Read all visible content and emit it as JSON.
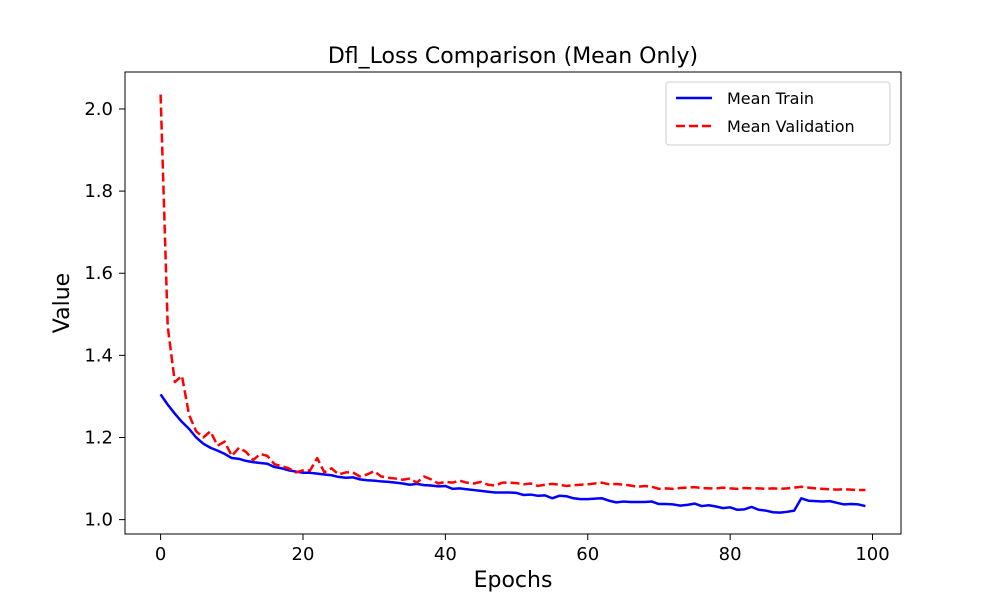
{
  "chart_data": {
    "type": "line",
    "title": "Dfl_Loss Comparison (Mean Only)",
    "xlabel": "Epochs",
    "ylabel": "Value",
    "xlim": [
      -5,
      104
    ],
    "ylim": [
      0.965,
      2.09
    ],
    "xticks": [
      0,
      20,
      40,
      60,
      80,
      100
    ],
    "yticks": [
      1.0,
      1.2,
      1.4,
      1.6,
      1.8,
      2.0
    ],
    "xtick_labels": [
      "0",
      "20",
      "40",
      "60",
      "80",
      "100"
    ],
    "ytick_labels": [
      "1.0",
      "1.2",
      "1.4",
      "1.6",
      "1.8",
      "2.0"
    ],
    "grid": false,
    "legend_position": "upper right",
    "x": [
      0,
      1,
      2,
      3,
      4,
      5,
      6,
      7,
      8,
      9,
      10,
      11,
      12,
      13,
      14,
      15,
      16,
      17,
      18,
      19,
      20,
      21,
      22,
      23,
      24,
      25,
      26,
      27,
      28,
      29,
      30,
      31,
      32,
      33,
      34,
      35,
      36,
      37,
      38,
      39,
      40,
      41,
      42,
      43,
      44,
      45,
      46,
      47,
      48,
      49,
      50,
      51,
      52,
      53,
      54,
      55,
      56,
      57,
      58,
      59,
      60,
      61,
      62,
      63,
      64,
      65,
      66,
      67,
      68,
      69,
      70,
      71,
      72,
      73,
      74,
      75,
      76,
      77,
      78,
      79,
      80,
      81,
      82,
      83,
      84,
      85,
      86,
      87,
      88,
      89,
      90,
      91,
      92,
      93,
      94,
      95,
      96,
      97,
      98,
      99
    ],
    "series": [
      {
        "name": "Mean Train",
        "color": "#0000ff",
        "style": "solid",
        "values": [
          1.305,
          1.28,
          1.258,
          1.238,
          1.221,
          1.2,
          1.185,
          1.175,
          1.168,
          1.16,
          1.15,
          1.148,
          1.143,
          1.14,
          1.138,
          1.136,
          1.128,
          1.125,
          1.12,
          1.117,
          1.114,
          1.114,
          1.112,
          1.11,
          1.108,
          1.104,
          1.102,
          1.103,
          1.098,
          1.096,
          1.095,
          1.093,
          1.092,
          1.09,
          1.088,
          1.085,
          1.087,
          1.084,
          1.083,
          1.081,
          1.082,
          1.075,
          1.076,
          1.074,
          1.072,
          1.07,
          1.068,
          1.066,
          1.066,
          1.066,
          1.065,
          1.06,
          1.061,
          1.058,
          1.059,
          1.052,
          1.058,
          1.057,
          1.052,
          1.05,
          1.05,
          1.051,
          1.052,
          1.046,
          1.042,
          1.044,
          1.043,
          1.043,
          1.043,
          1.044,
          1.038,
          1.038,
          1.037,
          1.034,
          1.036,
          1.039,
          1.033,
          1.035,
          1.032,
          1.028,
          1.03,
          1.024,
          1.025,
          1.031,
          1.024,
          1.022,
          1.018,
          1.017,
          1.019,
          1.022,
          1.052,
          1.046,
          1.045,
          1.044,
          1.045,
          1.041,
          1.037,
          1.038,
          1.037,
          1.033
        ]
      },
      {
        "name": "Mean Validation",
        "color": "#ff0000",
        "style": "dashed",
        "values": [
          2.035,
          1.47,
          1.335,
          1.35,
          1.255,
          1.215,
          1.2,
          1.215,
          1.18,
          1.19,
          1.155,
          1.175,
          1.165,
          1.145,
          1.16,
          1.155,
          1.135,
          1.13,
          1.125,
          1.115,
          1.12,
          1.12,
          1.15,
          1.115,
          1.125,
          1.11,
          1.115,
          1.115,
          1.105,
          1.11,
          1.118,
          1.105,
          1.102,
          1.1,
          1.097,
          1.1,
          1.09,
          1.105,
          1.098,
          1.088,
          1.092,
          1.09,
          1.095,
          1.09,
          1.088,
          1.092,
          1.085,
          1.083,
          1.09,
          1.09,
          1.089,
          1.086,
          1.088,
          1.082,
          1.085,
          1.087,
          1.085,
          1.082,
          1.084,
          1.085,
          1.086,
          1.088,
          1.09,
          1.086,
          1.087,
          1.085,
          1.083,
          1.08,
          1.082,
          1.08,
          1.075,
          1.076,
          1.075,
          1.077,
          1.078,
          1.079,
          1.077,
          1.076,
          1.076,
          1.078,
          1.076,
          1.075,
          1.077,
          1.076,
          1.076,
          1.075,
          1.076,
          1.075,
          1.076,
          1.078,
          1.08,
          1.078,
          1.076,
          1.075,
          1.074,
          1.073,
          1.074,
          1.073,
          1.072,
          1.072
        ]
      }
    ]
  }
}
